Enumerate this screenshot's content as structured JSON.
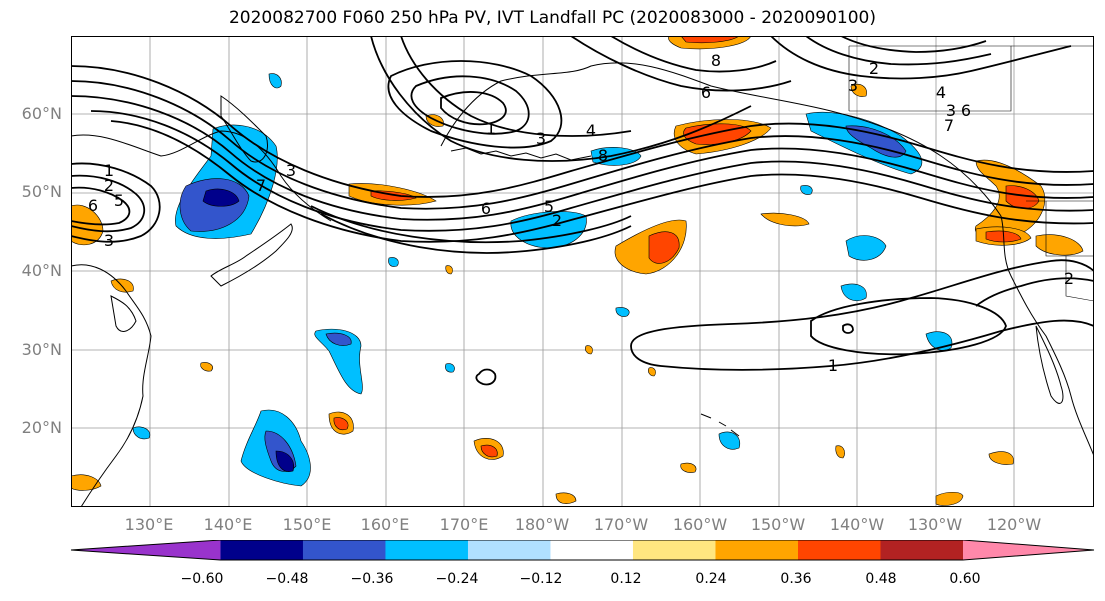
{
  "title": "2020082700 F060 250 hPa PV, IVT Landfall PC (2020083000 - 2020090100)",
  "lat_labels": [
    "60°N",
    "50°N",
    "40°N",
    "30°N",
    "20°N"
  ],
  "lon_labels": [
    "130°E",
    "140°E",
    "150°E",
    "160°E",
    "170°E",
    "180°W",
    "170°W",
    "160°W",
    "150°W",
    "140°W",
    "130°W",
    "120°W"
  ],
  "contour_labels": [
    "1",
    "2",
    "5",
    "6",
    "3",
    "7",
    "3",
    "1",
    "3",
    "4",
    "6",
    "5",
    "2",
    "8",
    "8",
    "6",
    "2",
    "3",
    "4",
    "3",
    "6",
    "7",
    "2",
    "1"
  ],
  "colorbar": {
    "ticks": [
      "−0.60",
      "−0.48",
      "−0.36",
      "−0.24",
      "−0.12",
      "0.12",
      "0.24",
      "0.36",
      "0.48",
      "0.60"
    ],
    "colors": [
      "#9933cc",
      "#00008b",
      "#3355cc",
      "#00bfff",
      "#b0e0ff",
      "#ffffff",
      "#ffe680",
      "#ffa500",
      "#ff4500",
      "#b22222",
      "#ff88aa"
    ]
  },
  "colors": {
    "pv_contour": "#000000",
    "coast": "#000000",
    "grid": "#9a9a9a",
    "axis_text": "#808080"
  }
}
